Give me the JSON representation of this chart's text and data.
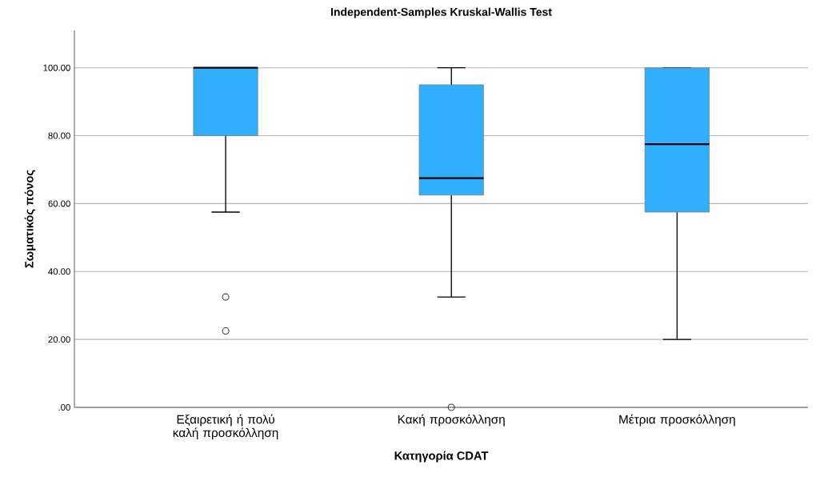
{
  "chart_data": {
    "type": "box",
    "title": "Independent-Samples Kruskal-Wallis Test",
    "xlabel": "Κατηγορία CDAT",
    "ylabel": "Σωματικός πόνος",
    "categories": [
      "Εξαιρετική ή πολύ καλή προσκόλληση",
      "Κακή προσκόλληση",
      "Μέτρια προσκόλληση"
    ],
    "boxes": [
      {
        "low": 57.5,
        "q1": 80,
        "median": 100,
        "q3": 100,
        "high": 100,
        "outliers": [
          32.5,
          22.5
        ]
      },
      {
        "low": 32.5,
        "q1": 62.5,
        "median": 67.5,
        "q3": 95,
        "high": 100,
        "outliers": [
          0
        ]
      },
      {
        "low": 20,
        "q1": 57.5,
        "median": 77.5,
        "q3": 100,
        "high": 100
      }
    ],
    "color": "#31aefe",
    "ylim": [
      0,
      111
    ],
    "yticks": [
      {
        "value": 0,
        "label": ".00"
      },
      {
        "value": 20,
        "label": "20.00"
      },
      {
        "value": 40,
        "label": "40.00"
      },
      {
        "value": 60,
        "label": "60.00"
      },
      {
        "value": 80,
        "label": "80.00"
      },
      {
        "value": 100,
        "label": "100.00"
      }
    ],
    "grid": "y",
    "marker": "circle"
  }
}
